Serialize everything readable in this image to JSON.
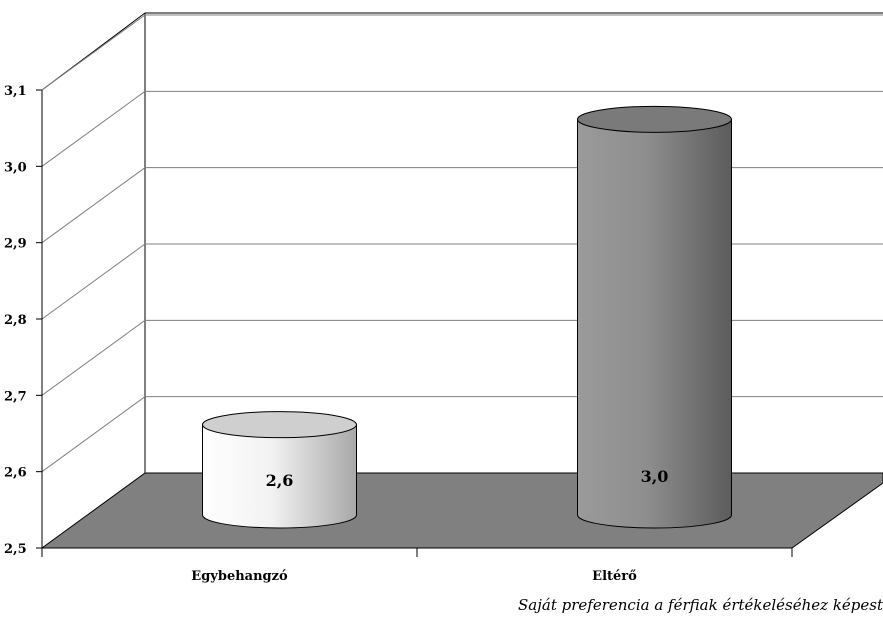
{
  "chart_data": {
    "type": "bar",
    "style": "3d-cylinder",
    "categories": [
      "Egybehangzó",
      "Eltérő"
    ],
    "values": [
      2.6,
      3.0
    ],
    "data_labels": [
      "2,6",
      "3,0"
    ],
    "ylim": [
      2.5,
      3.1
    ],
    "yticks": [
      2.5,
      2.6,
      2.7,
      2.8,
      2.9,
      3.0,
      3.1
    ],
    "ytick_labels": [
      "2,5",
      "2,6",
      "2,7",
      "2,8",
      "2,9",
      "3,0",
      "3,1"
    ],
    "grid": true,
    "legend": "none",
    "bar_colors": [
      "#f0f0f0",
      "#8c8c8c"
    ],
    "floor_color": "#808080"
  },
  "caption": "Saját preferencia a férfiak értékeléséhez képest"
}
